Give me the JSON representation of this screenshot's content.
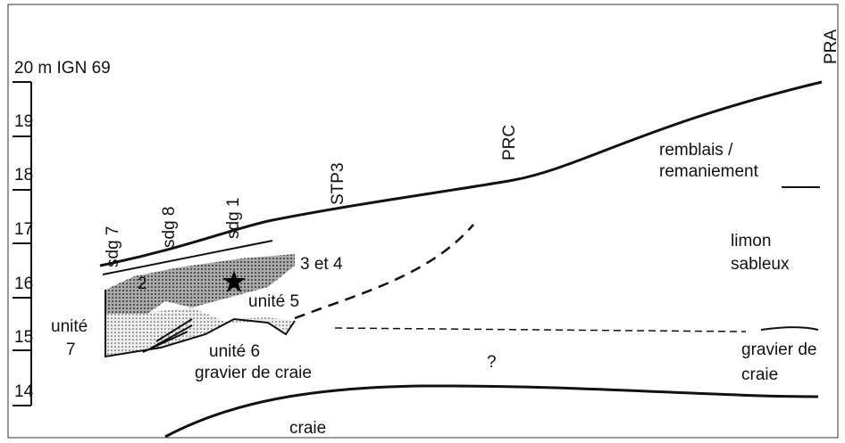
{
  "scale": {
    "title": "20 m IGN 69",
    "labels": [
      "19",
      "18",
      "17",
      "16",
      "15",
      "14"
    ]
  },
  "profiles": [
    "sdg 7",
    "sdg 8",
    "sdg 1",
    "STP3",
    "PRC",
    "PRA"
  ],
  "units": {
    "remblais_1": "remblais /",
    "remblais_2": "remaniement",
    "limon_1": "limon",
    "limon_2": "sableux",
    "u34": "3 et 4",
    "u2": "2",
    "u5": "unité 5",
    "u7_1": "unité",
    "u7_2": "7",
    "u6": "unité 6",
    "gravier": "gravier de craie",
    "question": "?",
    "gravier_r1": "gravier de",
    "gravier_r2": "craie",
    "craie": "craie"
  }
}
